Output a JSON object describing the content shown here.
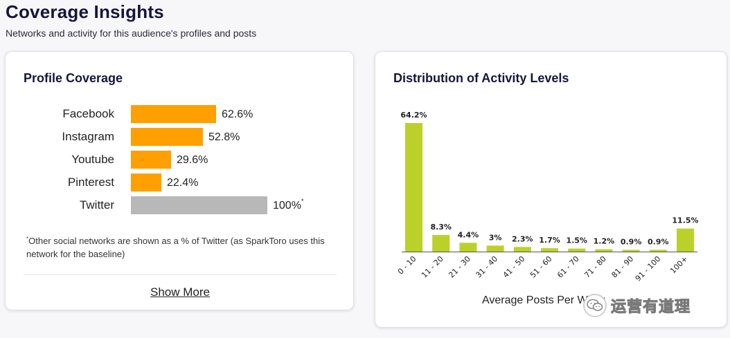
{
  "header": {
    "title": "Coverage Insights",
    "subtitle": "Networks and activity for this audience's profiles and posts"
  },
  "profile_coverage": {
    "title": "Profile Coverage",
    "rows": [
      {
        "network": "Facebook",
        "value": "62.6%",
        "percent": 62.6,
        "color": "#ff9f00"
      },
      {
        "network": "Instagram",
        "value": "52.8%",
        "percent": 52.8,
        "color": "#ff9f00"
      },
      {
        "network": "Youtube",
        "value": "29.6%",
        "percent": 29.6,
        "color": "#ff9f00"
      },
      {
        "network": "Pinterest",
        "value": "22.4%",
        "percent": 22.4,
        "color": "#ff9f00"
      },
      {
        "network": "Twitter",
        "value": "100%",
        "percent": 100,
        "color": "#b8b8b8",
        "footnote_mark": "*"
      }
    ],
    "footnote_mark": "*",
    "footnote": "Other social networks are shown as a % of Twitter (as SparkToro uses this network for the baseline)",
    "show_more_label": "Show More"
  },
  "activity": {
    "title": "Distribution of Activity Levels",
    "bar_color": "#bcd02a"
  },
  "chart_data": {
    "type": "bar",
    "categories": [
      "0 - 10",
      "11 - 20",
      "21 - 30",
      "31 - 40",
      "41 - 50",
      "51 - 60",
      "61 - 70",
      "71 - 80",
      "81 - 90",
      "91 - 100",
      "100+"
    ],
    "values": [
      64.2,
      8.3,
      4.4,
      3,
      2.3,
      1.7,
      1.5,
      1.2,
      0.9,
      0.9,
      11.5
    ],
    "labels": [
      "64.2%",
      "8.3%",
      "4.4%",
      "3%",
      "2.3%",
      "1.7%",
      "1.5%",
      "1.2%",
      "0.9%",
      "0.9%",
      "11.5%"
    ],
    "title": "Distribution of Activity Levels",
    "xlabel": "Average Posts Per Week",
    "ylabel": "",
    "ylim": [
      0,
      64.2
    ],
    "grid": false,
    "legend": "none"
  },
  "watermark": {
    "text": "运营有道理",
    "icon": "wechat-icon"
  }
}
